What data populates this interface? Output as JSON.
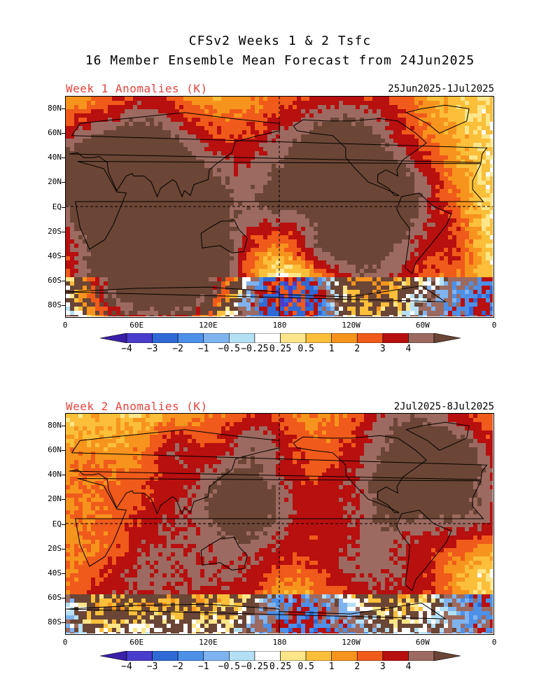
{
  "header": {
    "line1": "CFSv2 Weeks 1 & 2 Tsfc",
    "line2": "16 Member Ensemble Mean Forecast from 24Jun2025"
  },
  "panels": [
    {
      "title": "Week 1 Anomalies (K)",
      "dates": "25Jun2025-1Jul2025"
    },
    {
      "title": "Week 2 Anomalies (K)",
      "dates": "2Jul2025-8Jul2025"
    }
  ],
  "axes": {
    "lat_labels": [
      "80N",
      "60N",
      "40N",
      "20N",
      "EQ",
      "20S",
      "40S",
      "60S",
      "80S"
    ],
    "lon_labels": [
      "0",
      "60E",
      "120E",
      "180",
      "120W",
      "60W",
      "0"
    ]
  },
  "colorbar": {
    "labels": [
      "−4",
      "−3",
      "−2",
      "−1",
      "−0.5",
      "−0.25",
      "0.25",
      "0.5",
      "1",
      "2",
      "3",
      "4"
    ],
    "colors": [
      "#3a1fa8",
      "#4a3ccc",
      "#2f6ad6",
      "#4d90e8",
      "#7fb3f0",
      "#b4e0f5",
      "#ffffff",
      "#fde68a",
      "#fbbf3a",
      "#f7941d",
      "#f05a1a",
      "#b80f0f",
      "#9c6a60",
      "#6b4535"
    ]
  }
}
